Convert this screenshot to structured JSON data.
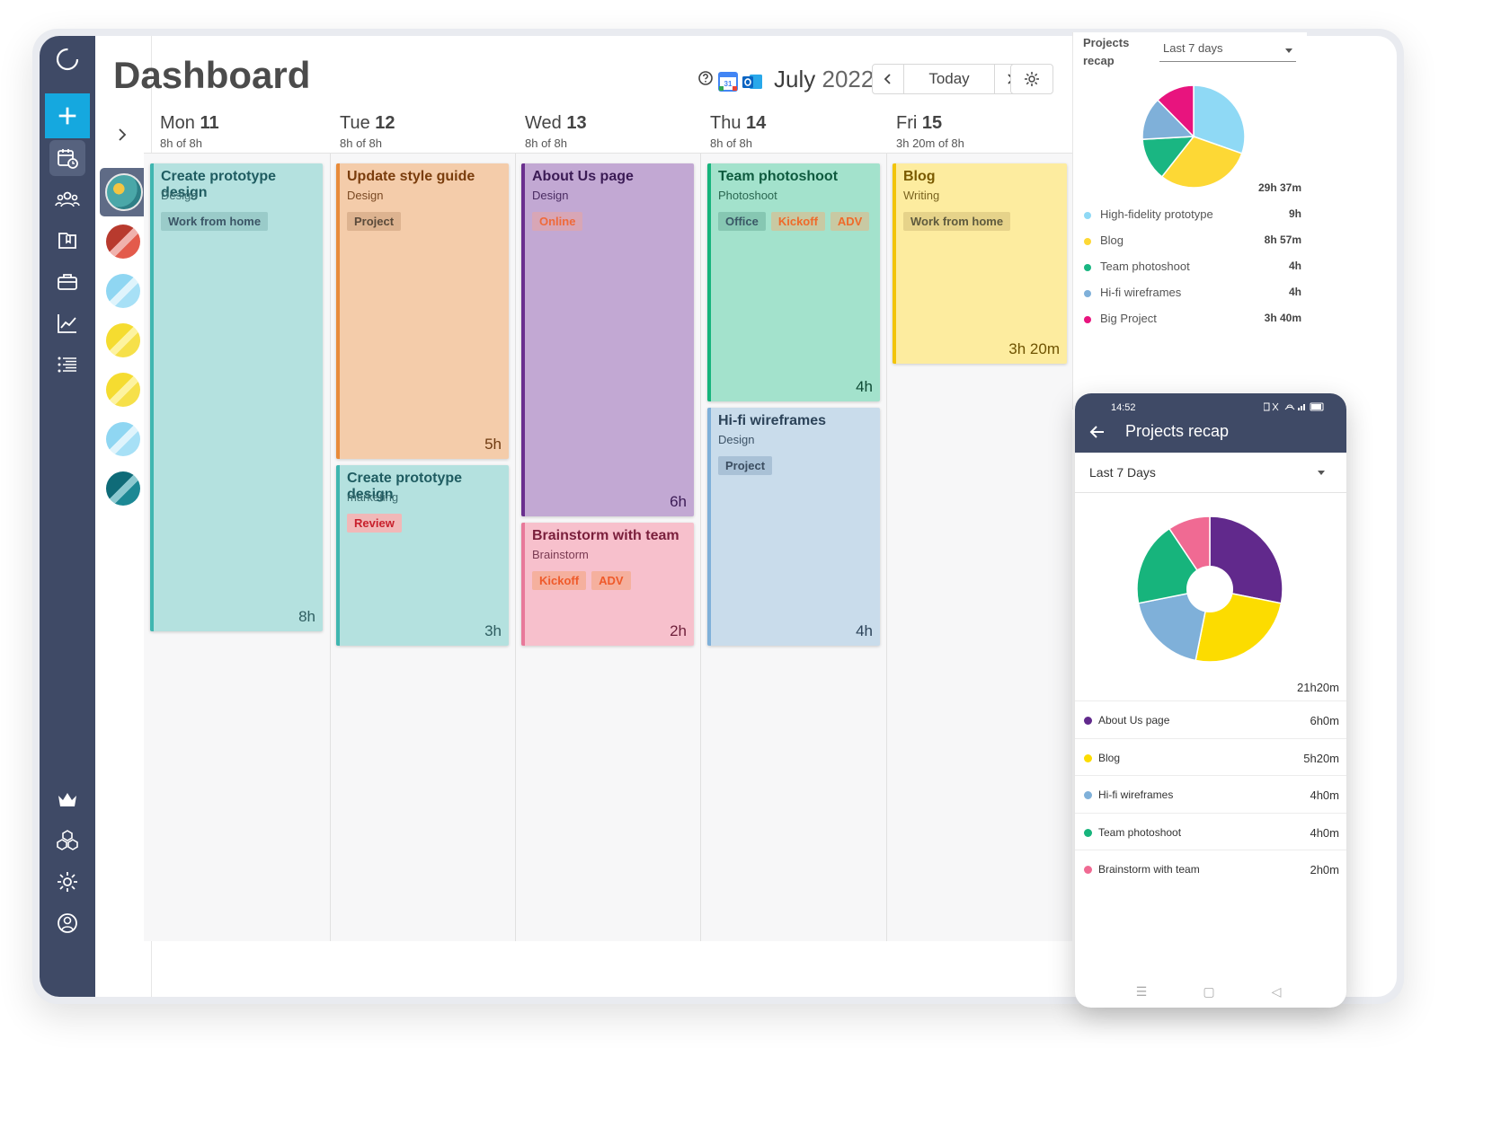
{
  "header": {
    "title": "Dashboard",
    "month": "July",
    "year": "2022",
    "today_label": "Today"
  },
  "days": [
    {
      "name": "Mon",
      "num": "11",
      "hours": "8h of 8h"
    },
    {
      "name": "Tue",
      "num": "12",
      "hours": "8h of 8h"
    },
    {
      "name": "Wed",
      "num": "13",
      "hours": "8h of 8h"
    },
    {
      "name": "Thu",
      "num": "14",
      "hours": "8h of 8h"
    },
    {
      "name": "Fri",
      "num": "15",
      "hours": "3h 20m of 8h"
    }
  ],
  "events": [
    {
      "title": "Create prototype design",
      "subtitle": "Design",
      "tags": [
        {
          "label": "Work from home",
          "kind": "neutral"
        }
      ],
      "duration": "8h"
    },
    {
      "title": "Update style guide",
      "subtitle": "Design",
      "tags": [
        {
          "label": "Project",
          "kind": "neutral"
        }
      ],
      "duration": "5h"
    },
    {
      "title": "Create prototype design",
      "subtitle": "marketing",
      "tags": [
        {
          "label": "Review",
          "kind": "red"
        }
      ],
      "duration": "3h"
    },
    {
      "title": "About Us page",
      "subtitle": "Design",
      "tags": [
        {
          "label": "Online",
          "kind": "orange"
        }
      ],
      "duration": "6h"
    },
    {
      "title": "Brainstorm with team",
      "subtitle": "Brainstorm",
      "tags": [
        {
          "label": "Kickoff",
          "kind": "orange"
        },
        {
          "label": "ADV",
          "kind": "orange"
        }
      ],
      "duration": "2h"
    },
    {
      "title": "Team photoshoot",
      "subtitle": "Photoshoot",
      "tags": [
        {
          "label": "Office",
          "kind": "neutral"
        },
        {
          "label": "Kickoff",
          "kind": "orange"
        },
        {
          "label": "ADV",
          "kind": "orange"
        }
      ],
      "duration": "4h"
    },
    {
      "title": "Hi-fi wireframes",
      "subtitle": "Design",
      "tags": [
        {
          "label": "Project",
          "kind": "neutral"
        }
      ],
      "duration": "4h"
    },
    {
      "title": "Blog",
      "subtitle": "Writing",
      "tags": [
        {
          "label": "Work from home",
          "kind": "neutral"
        }
      ],
      "duration": "3h 20m"
    }
  ],
  "recap": {
    "title": "Projects recap",
    "range": "Last 7 days",
    "total": "29h 37m",
    "items": [
      {
        "name": "High-fidelity prototype",
        "value": "9h",
        "color": "#8fd9f5",
        "minutes": 540
      },
      {
        "name": "Blog",
        "value": "8h 57m",
        "color": "#fdd835",
        "minutes": 537
      },
      {
        "name": "Team photoshoot",
        "value": "4h",
        "color": "#1ab682",
        "minutes": 240
      },
      {
        "name": "Hi-fi wireframes",
        "value": "4h",
        "color": "#7fb0d9",
        "minutes": 240
      },
      {
        "name": "Big Project",
        "value": "3h 40m",
        "color": "#e8147e",
        "minutes": 220
      }
    ]
  },
  "mobile": {
    "time": "14:52",
    "title": "Projects recap",
    "range": "Last 7 Days",
    "total": "21h20m",
    "items": [
      {
        "name": "About Us page",
        "value": "6h0m",
        "color": "#61298c",
        "minutes": 360
      },
      {
        "name": "Blog",
        "value": "5h20m",
        "color": "#fcdc00",
        "minutes": 320
      },
      {
        "name": "Hi-fi wireframes",
        "value": "4h0m",
        "color": "#7fb0d9",
        "minutes": 240
      },
      {
        "name": "Team photoshoot",
        "value": "4h0m",
        "color": "#17b47c",
        "minutes": 240
      },
      {
        "name": "Brainstorm with team",
        "value": "2h0m",
        "color": "#f06a93",
        "minutes": 120
      }
    ]
  }
}
